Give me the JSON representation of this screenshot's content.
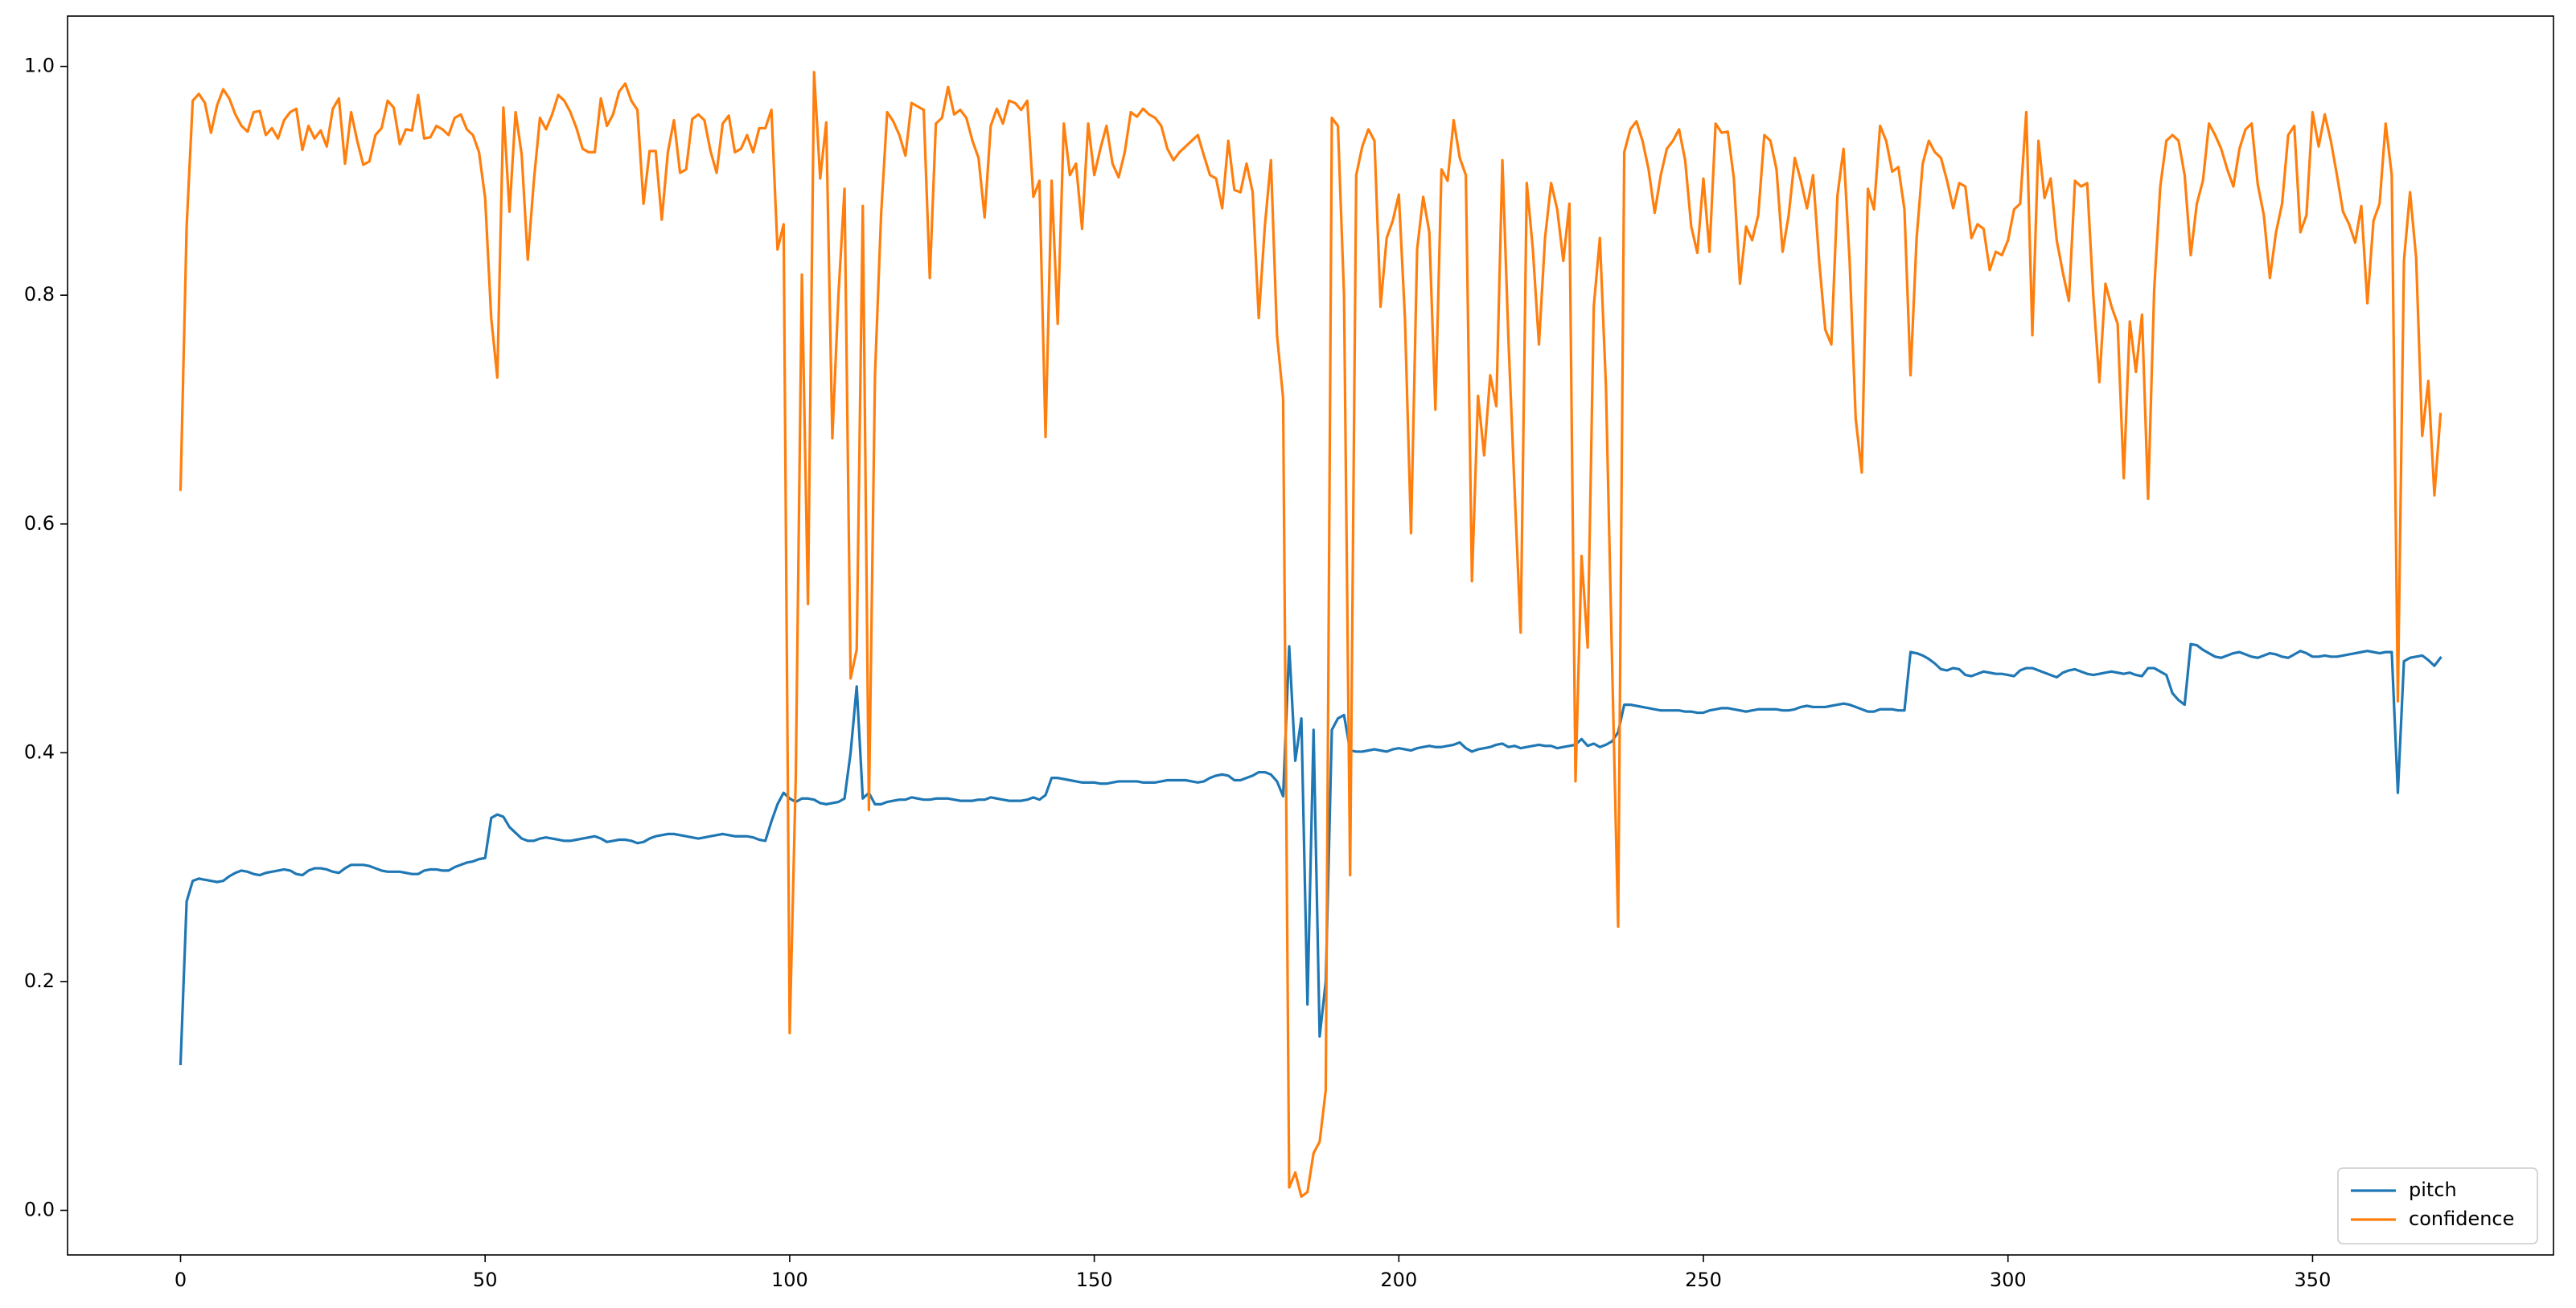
{
  "chart_data": {
    "type": "line",
    "x": [
      0,
      1,
      2,
      3,
      4,
      5,
      6,
      7,
      8,
      9,
      10,
      11,
      12,
      13,
      14,
      15,
      16,
      17,
      18,
      19,
      20,
      21,
      22,
      23,
      24,
      25,
      26,
      27,
      28,
      29,
      30,
      31,
      32,
      33,
      34,
      35,
      36,
      37,
      38,
      39,
      40,
      41,
      42,
      43,
      44,
      45,
      46,
      47,
      48,
      49,
      50,
      51,
      52,
      53,
      54,
      55,
      56,
      57,
      58,
      59,
      60,
      61,
      62,
      63,
      64,
      65,
      66,
      67,
      68,
      69,
      70,
      71,
      72,
      73,
      74,
      75,
      76,
      77,
      78,
      79,
      80,
      81,
      82,
      83,
      84,
      85,
      86,
      87,
      88,
      89,
      90,
      91,
      92,
      93,
      94,
      95,
      96,
      97,
      98,
      99,
      100,
      101,
      102,
      103,
      104,
      105,
      106,
      107,
      108,
      109,
      110,
      111,
      112,
      113,
      114,
      115,
      116,
      117,
      118,
      119,
      120,
      121,
      122,
      123,
      124,
      125,
      126,
      127,
      128,
      129,
      130,
      131,
      132,
      133,
      134,
      135,
      136,
      137,
      138,
      139,
      140,
      141,
      142,
      143,
      144,
      145,
      146,
      147,
      148,
      149,
      150,
      151,
      152,
      153,
      154,
      155,
      156,
      157,
      158,
      159,
      160,
      161,
      162,
      163,
      164,
      165,
      166,
      167,
      168,
      169,
      170,
      171,
      172,
      173,
      174,
      175,
      176,
      177,
      178,
      179,
      180,
      181,
      182,
      183,
      184,
      185,
      186,
      187,
      188,
      189,
      190,
      191,
      192,
      193,
      194,
      195,
      196,
      197,
      198,
      199,
      200,
      201,
      202,
      203,
      204,
      205,
      206,
      207,
      208,
      209,
      210,
      211,
      212,
      213,
      214,
      215,
      216,
      217,
      218,
      219,
      220,
      221,
      222,
      223,
      224,
      225,
      226,
      227,
      228,
      229,
      230,
      231,
      232,
      233,
      234,
      235,
      236,
      237,
      238,
      239,
      240,
      241,
      242,
      243,
      244,
      245,
      246,
      247,
      248,
      249,
      250,
      251,
      252,
      253,
      254,
      255,
      256,
      257,
      258,
      259,
      260,
      261,
      262,
      263,
      264,
      265,
      266,
      267,
      268,
      269,
      270,
      271,
      272,
      273,
      274,
      275,
      276,
      277,
      278,
      279,
      280,
      281,
      282,
      283,
      284,
      285,
      286,
      287,
      288,
      289,
      290,
      291,
      292,
      293,
      294,
      295,
      296,
      297,
      298,
      299,
      300,
      301,
      302,
      303,
      304,
      305,
      306,
      307,
      308,
      309,
      310,
      311,
      312,
      313,
      314,
      315,
      316,
      317,
      318,
      319,
      320,
      321,
      322,
      323,
      324,
      325,
      326,
      327,
      328,
      329,
      330,
      331,
      332,
      333,
      334,
      335,
      336,
      337,
      338,
      339,
      340,
      341,
      342,
      343,
      344,
      345,
      346,
      347,
      348,
      349,
      350,
      351,
      352,
      353,
      354,
      355,
      356,
      357,
      358,
      359,
      360,
      361,
      362,
      363,
      364,
      365,
      366,
      367,
      368,
      369,
      370,
      371
    ],
    "series": [
      {
        "name": "pitch",
        "color": "#1f77b4",
        "values": [
          0.128,
          0.27,
          0.288,
          0.29,
          0.289,
          0.288,
          0.287,
          0.288,
          0.292,
          0.295,
          0.297,
          0.296,
          0.294,
          0.293,
          0.295,
          0.296,
          0.297,
          0.298,
          0.297,
          0.294,
          0.293,
          0.297,
          0.299,
          0.299,
          0.298,
          0.296,
          0.295,
          0.299,
          0.302,
          0.302,
          0.302,
          0.301,
          0.299,
          0.297,
          0.296,
          0.296,
          0.296,
          0.295,
          0.294,
          0.294,
          0.297,
          0.298,
          0.298,
          0.297,
          0.297,
          0.3,
          0.302,
          0.304,
          0.305,
          0.307,
          0.308,
          0.343,
          0.346,
          0.344,
          0.335,
          0.33,
          0.325,
          0.323,
          0.323,
          0.325,
          0.326,
          0.325,
          0.324,
          0.323,
          0.323,
          0.324,
          0.325,
          0.326,
          0.327,
          0.325,
          0.322,
          0.323,
          0.324,
          0.324,
          0.323,
          0.321,
          0.322,
          0.325,
          0.327,
          0.328,
          0.329,
          0.329,
          0.328,
          0.327,
          0.326,
          0.325,
          0.326,
          0.327,
          0.328,
          0.329,
          0.328,
          0.327,
          0.327,
          0.327,
          0.326,
          0.324,
          0.323,
          0.34,
          0.355,
          0.365,
          0.36,
          0.357,
          0.36,
          0.36,
          0.359,
          0.356,
          0.355,
          0.356,
          0.357,
          0.36,
          0.4,
          0.458,
          0.36,
          0.365,
          0.355,
          0.355,
          0.357,
          0.358,
          0.359,
          0.359,
          0.361,
          0.36,
          0.359,
          0.359,
          0.36,
          0.36,
          0.36,
          0.359,
          0.358,
          0.358,
          0.358,
          0.359,
          0.359,
          0.361,
          0.36,
          0.359,
          0.358,
          0.358,
          0.358,
          0.359,
          0.361,
          0.359,
          0.363,
          0.378,
          0.378,
          0.377,
          0.376,
          0.375,
          0.374,
          0.374,
          0.374,
          0.373,
          0.373,
          0.374,
          0.375,
          0.375,
          0.375,
          0.375,
          0.374,
          0.374,
          0.374,
          0.375,
          0.376,
          0.376,
          0.376,
          0.376,
          0.375,
          0.374,
          0.375,
          0.378,
          0.38,
          0.381,
          0.38,
          0.376,
          0.376,
          0.378,
          0.38,
          0.383,
          0.383,
          0.381,
          0.375,
          0.362,
          0.493,
          0.393,
          0.43,
          0.18,
          0.42,
          0.152,
          0.2,
          0.42,
          0.43,
          0.433,
          0.402,
          0.401,
          0.401,
          0.402,
          0.403,
          0.402,
          0.401,
          0.403,
          0.404,
          0.403,
          0.402,
          0.404,
          0.405,
          0.406,
          0.405,
          0.405,
          0.406,
          0.407,
          0.409,
          0.404,
          0.401,
          0.403,
          0.404,
          0.405,
          0.407,
          0.408,
          0.405,
          0.406,
          0.404,
          0.405,
          0.406,
          0.407,
          0.406,
          0.406,
          0.404,
          0.405,
          0.406,
          0.407,
          0.412,
          0.406,
          0.408,
          0.405,
          0.407,
          0.41,
          0.418,
          0.442,
          0.442,
          0.441,
          0.44,
          0.439,
          0.438,
          0.437,
          0.437,
          0.437,
          0.437,
          0.436,
          0.436,
          0.435,
          0.435,
          0.437,
          0.438,
          0.439,
          0.439,
          0.438,
          0.437,
          0.436,
          0.437,
          0.438,
          0.438,
          0.438,
          0.438,
          0.437,
          0.437,
          0.438,
          0.44,
          0.441,
          0.44,
          0.44,
          0.44,
          0.441,
          0.442,
          0.443,
          0.442,
          0.44,
          0.438,
          0.436,
          0.436,
          0.438,
          0.438,
          0.438,
          0.437,
          0.437,
          0.488,
          0.487,
          0.485,
          0.482,
          0.478,
          0.473,
          0.472,
          0.474,
          0.473,
          0.468,
          0.467,
          0.469,
          0.471,
          0.47,
          0.469,
          0.469,
          0.468,
          0.467,
          0.472,
          0.474,
          0.474,
          0.472,
          0.47,
          0.468,
          0.466,
          0.47,
          0.472,
          0.473,
          0.471,
          0.469,
          0.468,
          0.469,
          0.47,
          0.471,
          0.47,
          0.469,
          0.47,
          0.468,
          0.467,
          0.474,
          0.474,
          0.471,
          0.468,
          0.452,
          0.446,
          0.442,
          0.495,
          0.494,
          0.49,
          0.487,
          0.484,
          0.483,
          0.485,
          0.487,
          0.488,
          0.486,
          0.484,
          0.483,
          0.485,
          0.487,
          0.486,
          0.484,
          0.483,
          0.486,
          0.489,
          0.487,
          0.484,
          0.484,
          0.485,
          0.484,
          0.484,
          0.485,
          0.486,
          0.487,
          0.488,
          0.489,
          0.488,
          0.487,
          0.488,
          0.488,
          0.365,
          0.48,
          0.483,
          0.484,
          0.485,
          0.481,
          0.476,
          0.483
        ]
      },
      {
        "name": "confidence",
        "color": "#ff7f0e",
        "values": [
          0.63,
          0.86,
          0.97,
          0.976,
          0.968,
          0.942,
          0.966,
          0.98,
          0.972,
          0.958,
          0.948,
          0.943,
          0.96,
          0.961,
          0.94,
          0.946,
          0.937,
          0.953,
          0.96,
          0.963,
          0.927,
          0.948,
          0.937,
          0.944,
          0.93,
          0.963,
          0.972,
          0.915,
          0.96,
          0.935,
          0.914,
          0.917,
          0.94,
          0.946,
          0.97,
          0.964,
          0.932,
          0.945,
          0.944,
          0.975,
          0.937,
          0.938,
          0.948,
          0.945,
          0.94,
          0.955,
          0.958,
          0.945,
          0.94,
          0.925,
          0.885,
          0.78,
          0.728,
          0.964,
          0.873,
          0.96,
          0.923,
          0.831,
          0.9,
          0.955,
          0.945,
          0.958,
          0.975,
          0.97,
          0.96,
          0.946,
          0.928,
          0.925,
          0.925,
          0.972,
          0.948,
          0.958,
          0.978,
          0.985,
          0.97,
          0.962,
          0.88,
          0.926,
          0.926,
          0.866,
          0.925,
          0.953,
          0.907,
          0.91,
          0.954,
          0.958,
          0.953,
          0.926,
          0.907,
          0.95,
          0.957,
          0.925,
          0.928,
          0.94,
          0.925,
          0.946,
          0.946,
          0.962,
          0.84,
          0.862,
          0.155,
          0.38,
          0.818,
          0.53,
          0.995,
          0.902,
          0.951,
          0.675,
          0.8,
          0.893,
          0.465,
          0.49,
          0.878,
          0.35,
          0.73,
          0.87,
          0.96,
          0.952,
          0.94,
          0.922,
          0.968,
          0.965,
          0.962,
          0.815,
          0.95,
          0.955,
          0.982,
          0.958,
          0.962,
          0.955,
          0.935,
          0.92,
          0.868,
          0.948,
          0.963,
          0.95,
          0.97,
          0.968,
          0.962,
          0.97,
          0.886,
          0.9,
          0.676,
          0.9,
          0.775,
          0.95,
          0.905,
          0.915,
          0.858,
          0.95,
          0.905,
          0.928,
          0.948,
          0.915,
          0.903,
          0.925,
          0.96,
          0.956,
          0.963,
          0.958,
          0.955,
          0.948,
          0.928,
          0.918,
          0.925,
          0.93,
          0.935,
          0.94,
          0.922,
          0.905,
          0.902,
          0.876,
          0.935,
          0.892,
          0.89,
          0.915,
          0.89,
          0.78,
          0.86,
          0.918,
          0.765,
          0.71,
          0.02,
          0.033,
          0.012,
          0.016,
          0.05,
          0.06,
          0.105,
          0.955,
          0.948,
          0.8,
          0.293,
          0.905,
          0.93,
          0.945,
          0.935,
          0.79,
          0.85,
          0.865,
          0.888,
          0.78,
          0.592,
          0.84,
          0.886,
          0.855,
          0.7,
          0.91,
          0.9,
          0.953,
          0.92,
          0.905,
          0.55,
          0.712,
          0.66,
          0.73,
          0.703,
          0.918,
          0.76,
          0.63,
          0.505,
          0.898,
          0.84,
          0.757,
          0.85,
          0.898,
          0.875,
          0.83,
          0.88,
          0.375,
          0.572,
          0.492,
          0.79,
          0.85,
          0.72,
          0.48,
          0.248,
          0.925,
          0.945,
          0.952,
          0.935,
          0.91,
          0.872,
          0.905,
          0.928,
          0.935,
          0.945,
          0.918,
          0.86,
          0.837,
          0.902,
          0.838,
          0.95,
          0.942,
          0.943,
          0.902,
          0.81,
          0.86,
          0.848,
          0.87,
          0.94,
          0.935,
          0.91,
          0.838,
          0.87,
          0.92,
          0.9,
          0.876,
          0.905,
          0.83,
          0.77,
          0.757,
          0.887,
          0.928,
          0.83,
          0.692,
          0.645,
          0.893,
          0.875,
          0.948,
          0.935,
          0.908,
          0.912,
          0.875,
          0.73,
          0.85,
          0.915,
          0.935,
          0.925,
          0.92,
          0.9,
          0.876,
          0.898,
          0.895,
          0.85,
          0.862,
          0.858,
          0.822,
          0.838,
          0.835,
          0.848,
          0.875,
          0.88,
          0.96,
          0.765,
          0.935,
          0.885,
          0.902,
          0.848,
          0.82,
          0.795,
          0.9,
          0.895,
          0.898,
          0.8,
          0.724,
          0.81,
          0.79,
          0.775,
          0.64,
          0.777,
          0.733,
          0.783,
          0.622,
          0.805,
          0.895,
          0.935,
          0.94,
          0.935,
          0.905,
          0.835,
          0.88,
          0.9,
          0.95,
          0.94,
          0.928,
          0.91,
          0.895,
          0.928,
          0.945,
          0.95,
          0.897,
          0.87,
          0.815,
          0.855,
          0.88,
          0.94,
          0.948,
          0.855,
          0.87,
          0.96,
          0.93,
          0.958,
          0.935,
          0.905,
          0.873,
          0.862,
          0.846,
          0.878,
          0.793,
          0.865,
          0.88,
          0.95,
          0.905,
          0.445,
          0.83,
          0.89,
          0.833,
          0.677,
          0.725,
          0.625,
          0.696
        ]
      }
    ],
    "xlim": [
      -18.55,
      389.55
    ],
    "xticks": [
      0,
      50,
      100,
      150,
      200,
      250,
      300,
      350
    ],
    "ylim": [
      -0.039,
      1.044
    ],
    "yticks": [
      {
        "value": 0,
        "label": "0.0"
      },
      0.2,
      0.4,
      0.6,
      0.8,
      {
        "value": 1,
        "label": "1.0"
      }
    ],
    "legend": "lower right"
  }
}
